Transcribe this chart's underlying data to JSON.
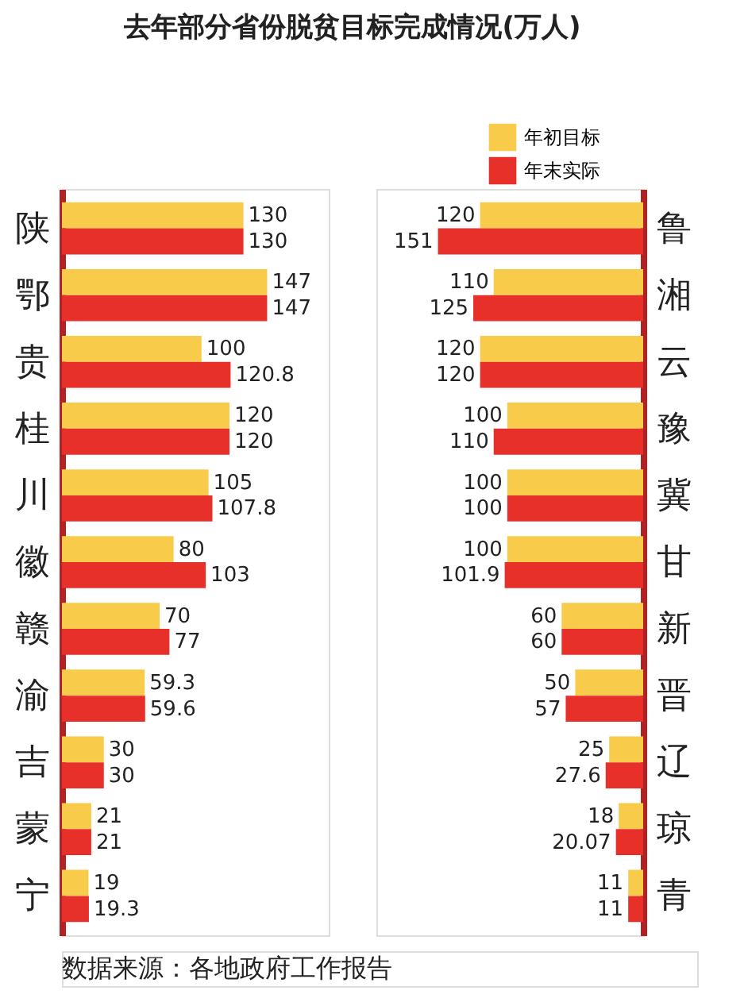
{
  "chart_data": [
    {
      "type": "bar",
      "orientation": "horizontal",
      "title": "去年部分省份脱贫目标完成情况(万人)",
      "annotations": [
        "数据来源：各地政府工作报告"
      ],
      "data_labels": true,
      "legend": false,
      "categories": [
        "陕",
        "鄂",
        "贵",
        "桂",
        "川",
        "徽",
        "赣",
        "渝",
        "吉",
        "蒙",
        "宁"
      ],
      "series": [
        {
          "color": "#f8cc4a",
          "values": [
            130,
            147,
            100,
            120,
            105,
            80,
            70,
            59.3,
            30,
            21,
            19
          ]
        },
        {
          "color": "#e8302a",
          "values": [
            130,
            147,
            120.8,
            120,
            107.8,
            103,
            77,
            59.6,
            30,
            21,
            19.3
          ]
        }
      ]
    },
    {
      "type": "bar",
      "orientation": "horizontal",
      "data_labels": true,
      "legend": "top right",
      "categories": [
        "鲁",
        "湘",
        "云",
        "豫",
        "冀",
        "甘",
        "新",
        "晋",
        "辽",
        "琼",
        "青"
      ],
      "series": [
        {
          "name": "年初目标",
          "color": "#f8cc4a",
          "values": [
            120,
            110,
            120,
            100,
            100,
            100,
            60,
            50,
            25,
            18,
            11
          ]
        },
        {
          "name": "年末实际",
          "color": "#e8302a",
          "values": [
            151,
            125,
            120,
            110,
            100,
            101.9,
            60,
            57,
            27.6,
            20.07,
            11
          ]
        }
      ]
    }
  ]
}
